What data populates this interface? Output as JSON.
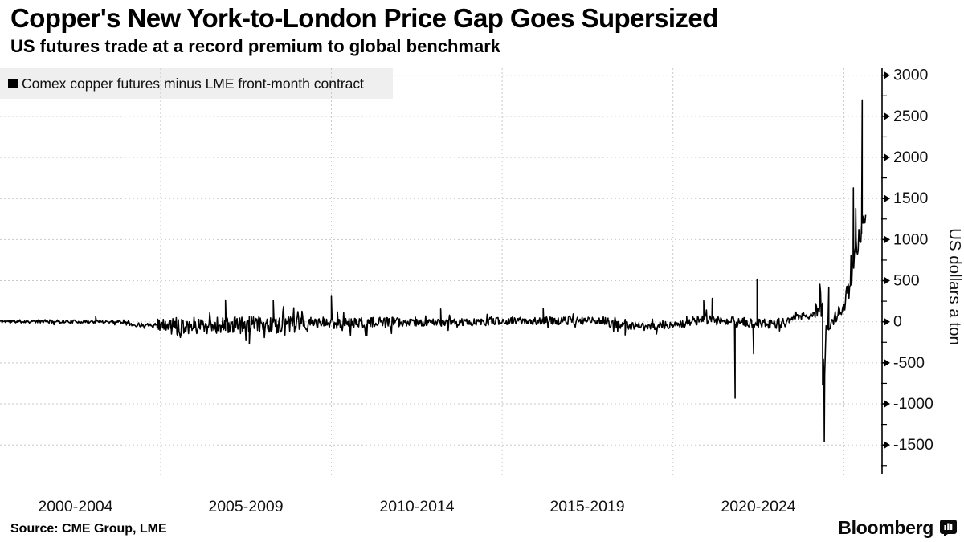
{
  "header": {
    "title": "Copper's New York-to-London Price Gap Goes Supersized",
    "subtitle": "US futures trade at a record premium to global benchmark"
  },
  "legend": {
    "label": "Comex copper futures minus LME front-month contract",
    "swatch_color": "#000000",
    "background_color": "#efefef"
  },
  "source": {
    "label": "Source: CME Group, LME"
  },
  "branding": {
    "wordmark": "Bloomberg"
  },
  "chart_data": {
    "type": "line",
    "title": "Copper's New York-to-London Price Gap Goes Supersized",
    "subtitle": "US futures trade at a record premium to global benchmark",
    "series_name": "Comex copper futures minus LME front-month contract",
    "line_color": "#000000",
    "grid": {
      "dashed": true,
      "color": "#c9c9c9",
      "on": true
    },
    "x_axis": {
      "range_years": [
        2000.3,
        2026.12
      ],
      "tick_labels": [
        "2000-2004",
        "2005-2009",
        "2010-2014",
        "2015-2019",
        "2020-2024"
      ],
      "tick_label_center_years": [
        2002.5,
        2007.5,
        2012.5,
        2017.5,
        2022.5
      ],
      "gridline_years": [
        2005,
        2010,
        2015,
        2020,
        2025
      ]
    },
    "y_axis": {
      "label": "US dollars a ton",
      "side": "right",
      "range": [
        -1850,
        3085
      ],
      "major_ticks": [
        3000,
        2500,
        2000,
        1500,
        1000,
        500,
        0,
        -500,
        -1000,
        -1500
      ],
      "minor_tick_interval": 250
    },
    "segments_format": [
      "from_year",
      "to_year",
      "mean_start",
      "mean_end",
      "noise_amplitude"
    ],
    "baseline_segments": [
      [
        2000.3,
        2004.1,
        5,
        0,
        20
      ],
      [
        2004.1,
        2004.9,
        -40,
        -30,
        25
      ],
      [
        2004.9,
        2005.3,
        -30,
        -45,
        70
      ],
      [
        2005.3,
        2009.4,
        -45,
        -35,
        105
      ],
      [
        2009.4,
        2012.0,
        -15,
        -15,
        70
      ],
      [
        2012.0,
        2014.6,
        -12,
        -5,
        45
      ],
      [
        2014.6,
        2018.1,
        10,
        12,
        48
      ],
      [
        2018.1,
        2019.2,
        -25,
        -60,
        50
      ],
      [
        2019.2,
        2020.4,
        -60,
        -25,
        45
      ],
      [
        2020.4,
        2021.78,
        10,
        20,
        60
      ],
      [
        2021.8,
        2022.3,
        -15,
        -15,
        70
      ],
      [
        2022.3,
        2023.4,
        -25,
        -10,
        60
      ],
      [
        2023.4,
        2024.1,
        25,
        90,
        50
      ],
      [
        2024.1,
        2024.38,
        130,
        160,
        95
      ],
      [
        2024.38,
        2024.48,
        -620,
        -480,
        170
      ],
      [
        2024.48,
        2024.75,
        -40,
        0,
        90
      ],
      [
        2024.75,
        2025.05,
        60,
        200,
        80
      ],
      [
        2025.05,
        2025.32,
        260,
        700,
        150
      ],
      [
        2025.32,
        2025.52,
        850,
        1080,
        170
      ],
      [
        2025.52,
        2025.65,
        1150,
        1280,
        100
      ]
    ],
    "spike_events_format": [
      "year",
      "value"
    ],
    "spike_events": [
      [
        2003.1,
        60
      ],
      [
        2006.9,
        265
      ],
      [
        2007.6,
        -270
      ],
      [
        2008.3,
        260
      ],
      [
        2010.0,
        310
      ],
      [
        2013.2,
        155
      ],
      [
        2016.2,
        165
      ],
      [
        2018.6,
        -160
      ],
      [
        2020.9,
        255
      ],
      [
        2021.15,
        285
      ],
      [
        2021.82,
        -930
      ],
      [
        2022.36,
        -390
      ],
      [
        2022.46,
        520
      ],
      [
        2024.3,
        455
      ],
      [
        2024.43,
        -1460
      ],
      [
        2024.56,
        420
      ],
      [
        2025.28,
        1630
      ],
      [
        2025.35,
        1380
      ],
      [
        2025.54,
        2700
      ]
    ],
    "sample_step_years": 0.02,
    "noise_seed": 11
  }
}
